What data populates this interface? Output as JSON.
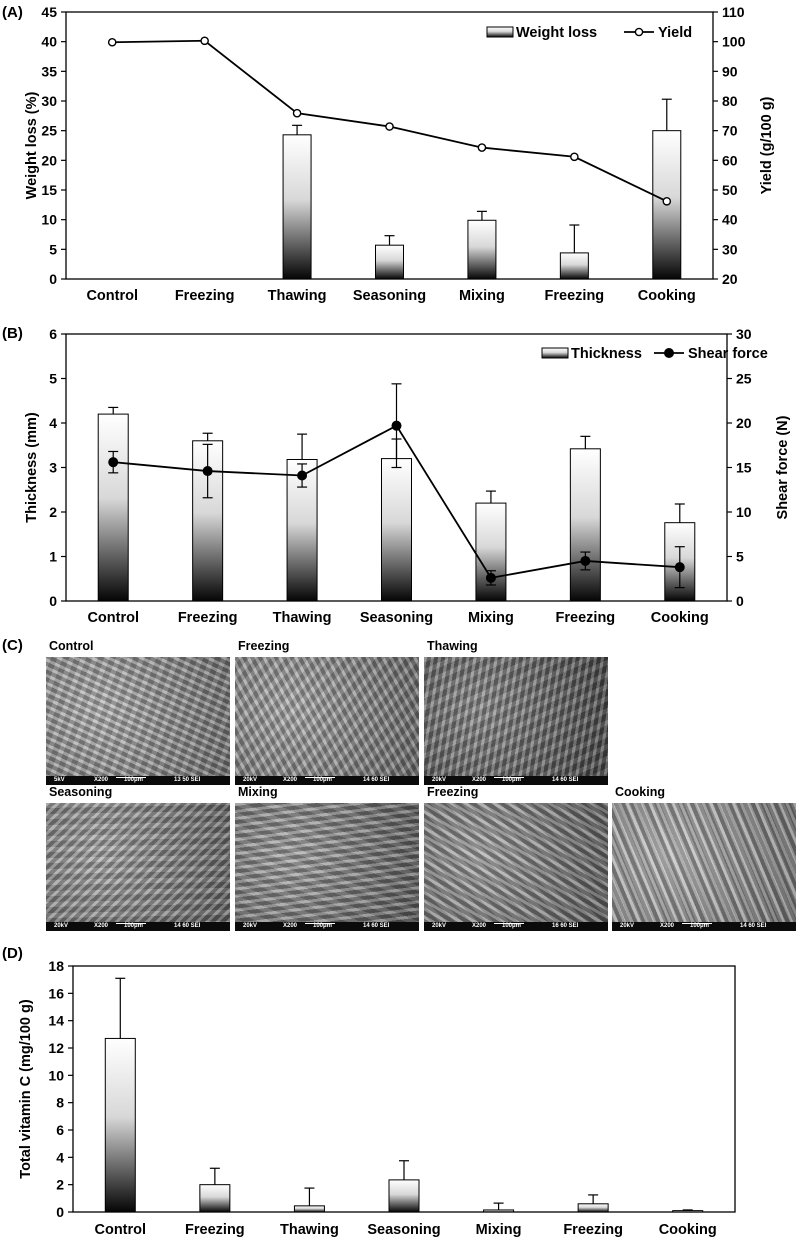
{
  "panels": {
    "a": "(A)",
    "b": "(B)",
    "c": "(C)",
    "d": "(D)"
  },
  "chart_data": [
    {
      "type": "bar",
      "categories": [
        "Control",
        "Freezing",
        "Thawing",
        "Seasoning",
        "Mixing",
        "Freezing",
        "Cooking"
      ],
      "series": [
        {
          "name": "Weight loss",
          "type": "bar",
          "axis": "left",
          "values": [
            null,
            null,
            24.3,
            5.7,
            9.9,
            4.4,
            25.0
          ],
          "errors": [
            null,
            null,
            1.6,
            1.6,
            1.5,
            4.7,
            5.3
          ]
        },
        {
          "name": "Yield",
          "type": "line",
          "axis": "right",
          "marker": "open-circle",
          "values": [
            99.8,
            100.3,
            75.9,
            71.4,
            64.3,
            61.2,
            46.2
          ]
        }
      ],
      "ylabel": "Weight loss (%)",
      "ylim": [
        0,
        45
      ],
      "yticks": [
        "0",
        "5",
        "10",
        "15",
        "20",
        "25",
        "30",
        "35",
        "40",
        "45"
      ],
      "y2label": "Yield (g/100 g)",
      "y2lim": [
        20,
        110
      ],
      "y2ticks": [
        "20",
        "30",
        "40",
        "50",
        "60",
        "70",
        "80",
        "90",
        "100",
        "110"
      ],
      "grid": false,
      "legend": "top-right"
    },
    {
      "type": "bar",
      "categories": [
        "Control",
        "Freezing",
        "Thawing",
        "Seasoning",
        "Mixing",
        "Freezing",
        "Cooking"
      ],
      "series": [
        {
          "name": "Thickness",
          "type": "bar",
          "axis": "left",
          "values": [
            4.2,
            3.6,
            3.18,
            3.2,
            2.2,
            3.42,
            1.76
          ],
          "errors": [
            0.15,
            0.17,
            0.57,
            0.44,
            0.27,
            0.28,
            0.42
          ]
        },
        {
          "name": "Shear force",
          "type": "line",
          "axis": "right",
          "marker": "filled-circle",
          "values": [
            15.6,
            14.6,
            14.1,
            19.7,
            2.6,
            4.5,
            3.8
          ],
          "errors": [
            1.2,
            3.0,
            1.3,
            4.7,
            0.8,
            1.0,
            2.3
          ]
        }
      ],
      "ylabel": "Thickness (mm)",
      "ylim": [
        0,
        6
      ],
      "yticks": [
        "0",
        "1",
        "2",
        "3",
        "4",
        "5",
        "6"
      ],
      "y2label": "Shear force (N)",
      "y2lim": [
        0,
        30
      ],
      "y2ticks": [
        "0",
        "5",
        "10",
        "15",
        "20",
        "25",
        "30"
      ],
      "grid": false,
      "legend": "top-right"
    },
    {
      "type": "bar",
      "categories": [
        "Control",
        "Freezing",
        "Thawing",
        "Seasoning",
        "Mixing",
        "Freezing",
        "Cooking"
      ],
      "series": [
        {
          "name": "Total vitamin C",
          "type": "bar",
          "axis": "left",
          "values": [
            12.7,
            2.0,
            0.45,
            2.35,
            0.15,
            0.6,
            0.1
          ],
          "errors": [
            4.4,
            1.2,
            1.3,
            1.4,
            0.5,
            0.65,
            0.05
          ]
        }
      ],
      "ylabel": "Total vitamin C (mg/100 g)",
      "ylim": [
        0,
        18
      ],
      "yticks": [
        "0",
        "2",
        "4",
        "6",
        "8",
        "10",
        "12",
        "14",
        "16",
        "18"
      ],
      "grid": false
    }
  ],
  "sem": [
    {
      "label": "Control",
      "kv": "5kV",
      "mag": "X200",
      "scale": "100μm",
      "info": "13 50 SEI",
      "tone": "#9a9a9a"
    },
    {
      "label": "Freezing",
      "kv": "20kV",
      "mag": "X200",
      "scale": "100μm",
      "info": "14 60 SEI",
      "tone": "#8f8f8f"
    },
    {
      "label": "Thawing",
      "kv": "20kV",
      "mag": "X200",
      "scale": "100μm",
      "info": "14 60 SEI",
      "tone": "#5a5a5a"
    },
    {
      "label": "Seasoning",
      "kv": "20kV",
      "mag": "X200",
      "scale": "100μm",
      "info": "14 60 SEI",
      "tone": "#888888"
    },
    {
      "label": "Mixing",
      "kv": "20kV",
      "mag": "X200",
      "scale": "100μm",
      "info": "14 60 SEI",
      "tone": "#7c7c7c"
    },
    {
      "label": "Freezing",
      "kv": "20kV",
      "mag": "X200",
      "scale": "100μm",
      "info": "16 60 SEI",
      "tone": "#818181"
    },
    {
      "label": "Cooking",
      "kv": "20kV",
      "mag": "X200",
      "scale": "100μm",
      "info": "14 60 SEI",
      "tone": "#a2a2a2"
    }
  ]
}
